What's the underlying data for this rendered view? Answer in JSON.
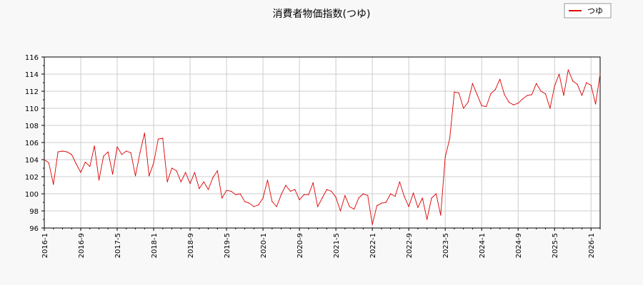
{
  "chart_data": {
    "type": "line",
    "title": "消費者物価指数(つゆ)",
    "xlabel": "",
    "ylabel": "",
    "ylim": [
      96,
      116
    ],
    "y_ticks": [
      "96",
      "98",
      "100",
      "102",
      "104",
      "106",
      "108",
      "110",
      "112",
      "114",
      "116"
    ],
    "x_ticks": [
      "2016-1",
      "2016-9",
      "2017-5",
      "2018-1",
      "2018-9",
      "2019-5",
      "2020-1",
      "2020-9",
      "2021-5",
      "2022-1",
      "2022-9",
      "2023-5",
      "2024-1",
      "2024-9",
      "2025-5",
      "2026-1"
    ],
    "grid": true,
    "legend_position": "top-right",
    "series": [
      {
        "name": "つゆ",
        "color": "#dd0000",
        "x_start": "2016-1",
        "x_end": "2026-1",
        "values": [
          104.0,
          103.6,
          101.1,
          104.9,
          105.0,
          104.9,
          104.6,
          103.5,
          102.5,
          103.7,
          103.2,
          105.6,
          101.6,
          104.4,
          104.9,
          102.3,
          105.5,
          104.6,
          105.0,
          104.8,
          102.1,
          104.8,
          107.1,
          102.1,
          103.6,
          106.4,
          106.5,
          101.4,
          103.0,
          102.7,
          101.4,
          102.5,
          101.2,
          102.5,
          100.6,
          101.4,
          100.5,
          101.9,
          102.7,
          99.5,
          100.4,
          100.3,
          99.9,
          100.0,
          99.1,
          98.9,
          98.5,
          98.7,
          99.5,
          101.6,
          99.1,
          98.5,
          99.9,
          101.0,
          100.3,
          100.5,
          99.3,
          99.9,
          99.9,
          101.3,
          98.5,
          99.5,
          100.5,
          100.3,
          99.6,
          98.0,
          99.8,
          98.5,
          98.2,
          99.5,
          100.0,
          99.8,
          96.4,
          98.6,
          98.9,
          99.0,
          100.0,
          99.7,
          101.4,
          99.7,
          98.5,
          100.1,
          98.4,
          99.5,
          97.0,
          99.5,
          100.0,
          97.5,
          104.3,
          106.5,
          111.9,
          111.8,
          110.0,
          110.7,
          112.9,
          111.6,
          110.3,
          110.2,
          111.7,
          112.2,
          113.4,
          111.6,
          110.7,
          110.4,
          110.6,
          111.1,
          111.5,
          111.6,
          112.9,
          112.0,
          111.7,
          110.0,
          112.6,
          114.0,
          111.5,
          114.5,
          113.2,
          112.8,
          111.5,
          113.0,
          112.7,
          110.5,
          114.0
        ]
      }
    ]
  }
}
